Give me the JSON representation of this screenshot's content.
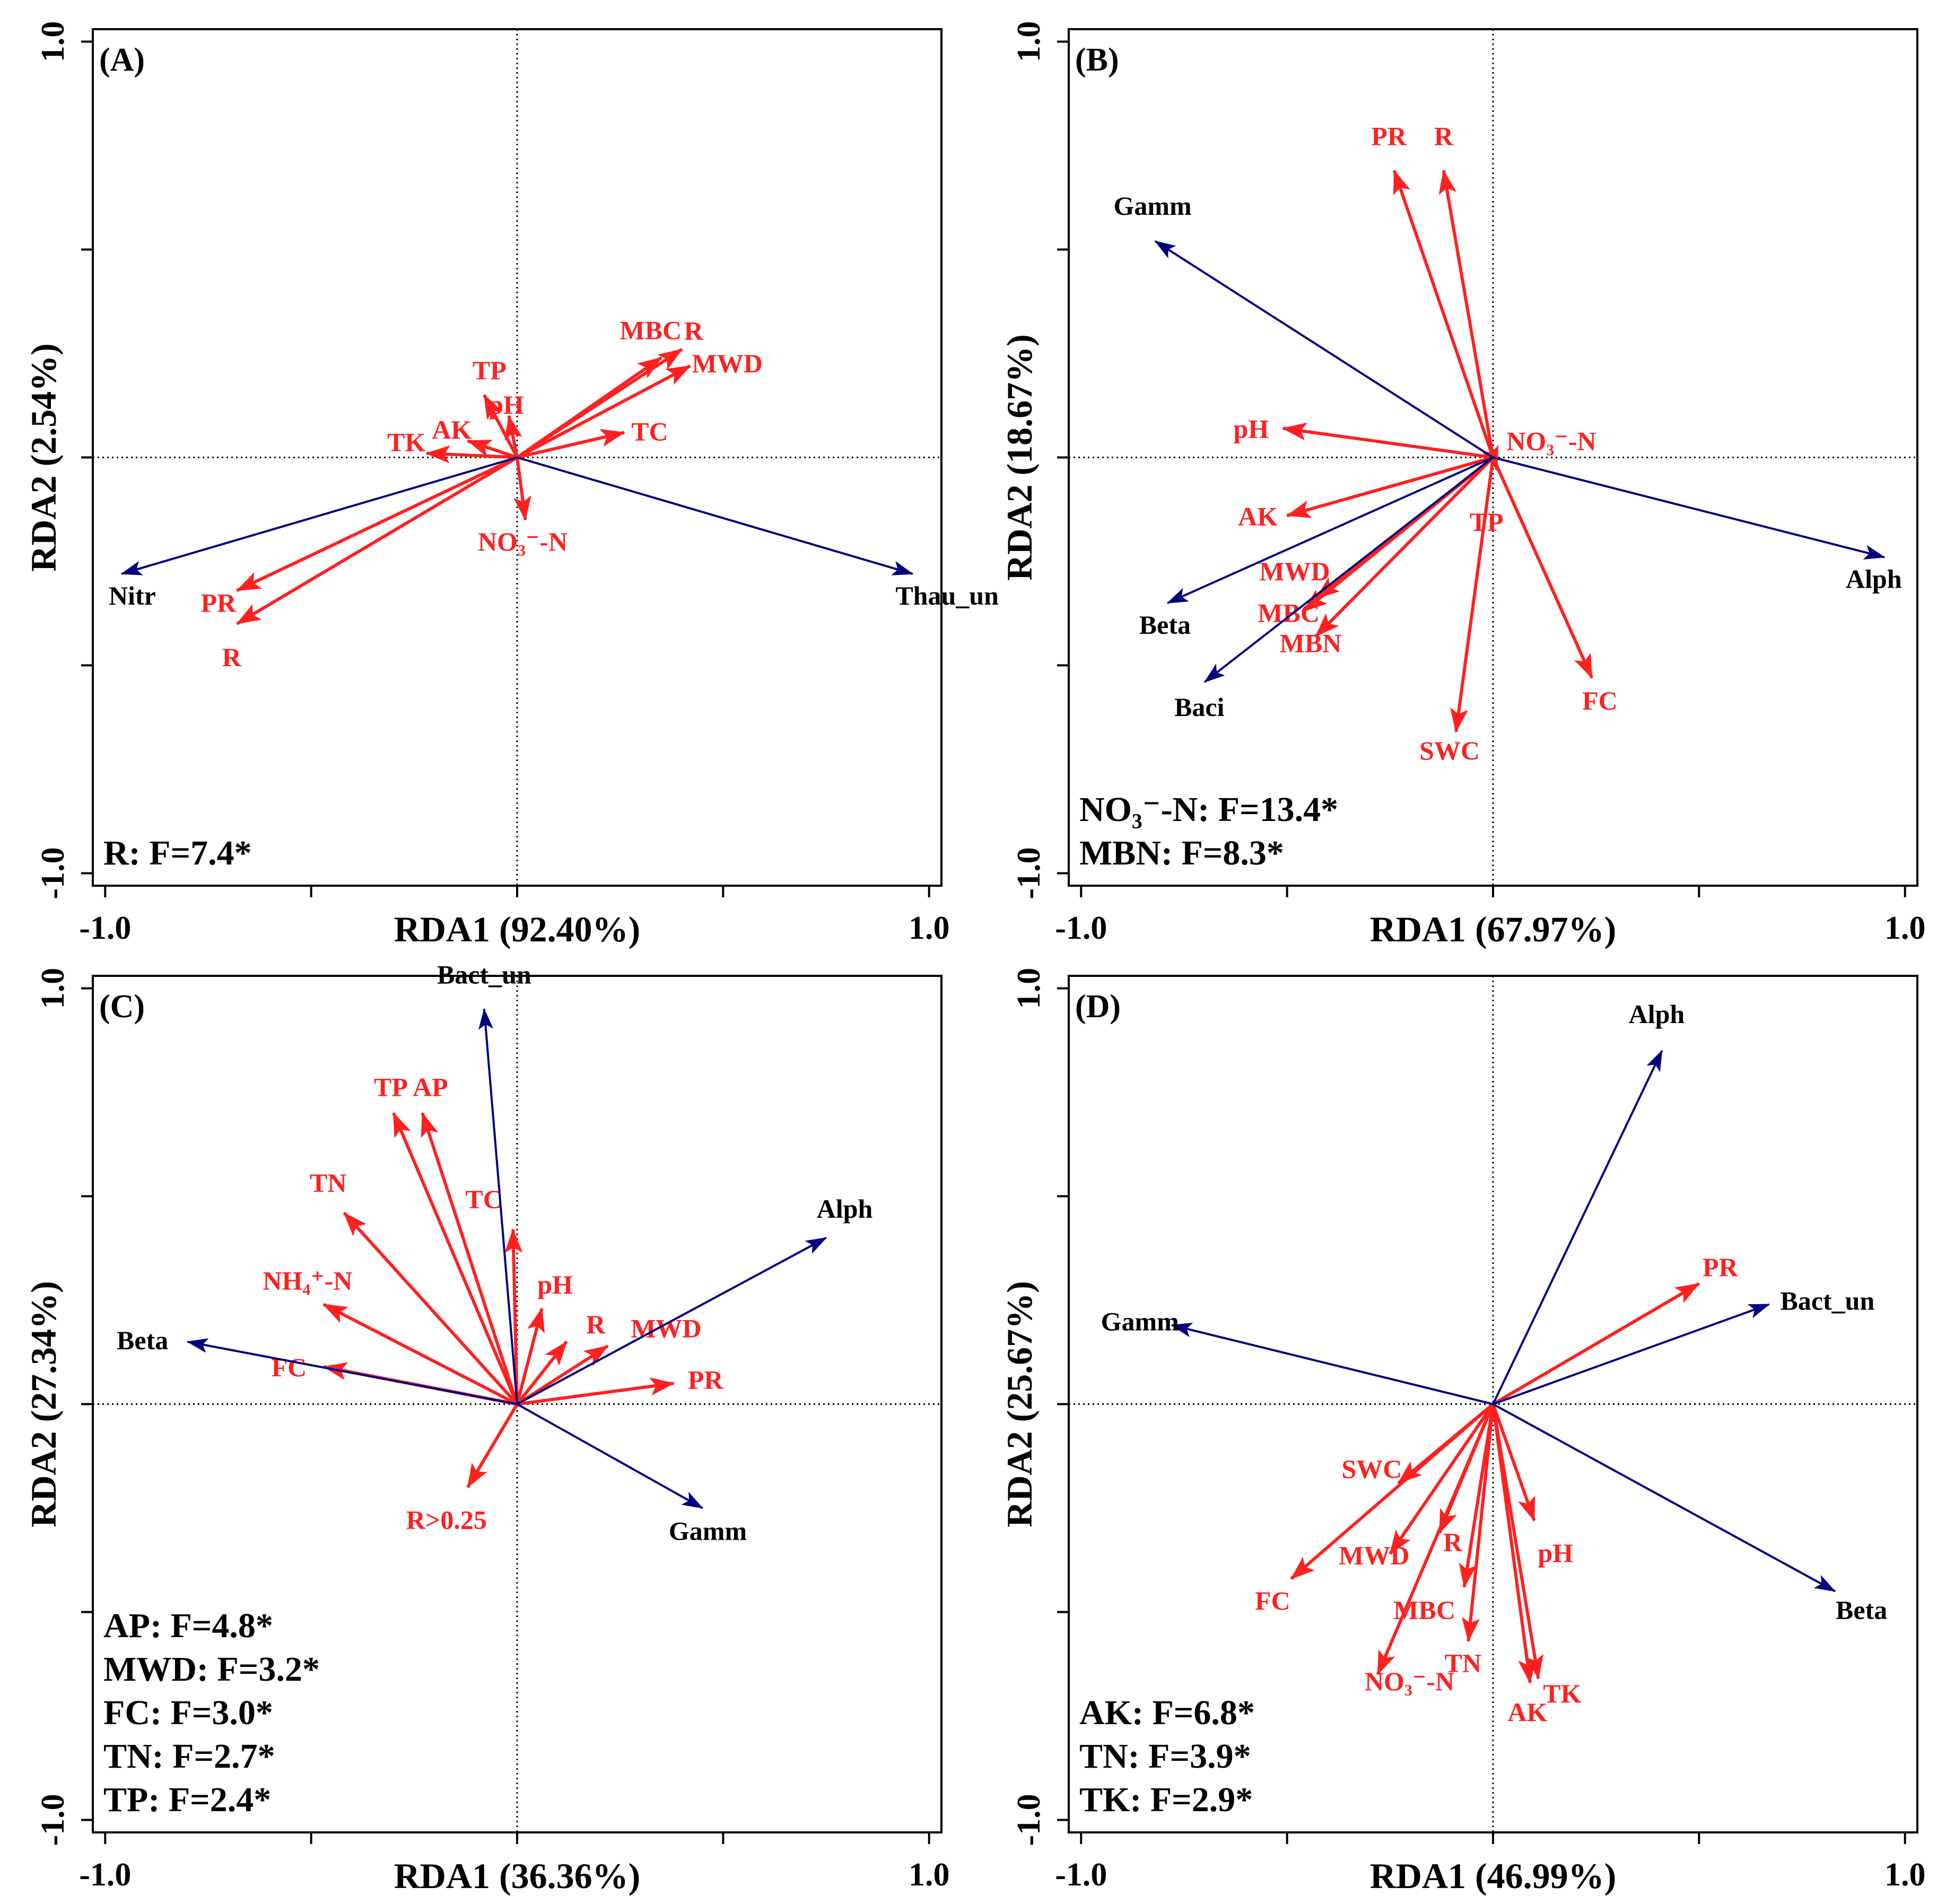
{
  "colors": {
    "env": "#ff2020",
    "taxa": "#000080",
    "frame": "#000000",
    "text": "#000000"
  },
  "chart_data": [
    {
      "type": "scatter",
      "panel": "(A)",
      "xlabel": "RDA1 (92.40%)",
      "ylabel": "RDA2 (2.54%)",
      "xlim": [
        -1.0,
        1.0
      ],
      "ylim": [
        -1.0,
        1.0
      ],
      "xtick_labels": [
        "-1.0",
        "1.0"
      ],
      "ytick_labels": [
        "-1.0",
        "1.0"
      ],
      "env_vectors": [
        {
          "name": "MBC",
          "x": 0.35,
          "y": 0.24
        },
        {
          "name": "R",
          "x": 0.4,
          "y": 0.26
        },
        {
          "name": "MWD",
          "x": 0.42,
          "y": 0.22
        },
        {
          "name": "TC",
          "x": 0.26,
          "y": 0.06
        },
        {
          "name": "pH",
          "x": -0.02,
          "y": 0.1
        },
        {
          "name": "TP",
          "x": -0.08,
          "y": 0.15
        },
        {
          "name": "AK",
          "x": -0.12,
          "y": 0.04
        },
        {
          "name": "TK",
          "x": -0.22,
          "y": 0.01
        },
        {
          "name": "NO₃⁻-N",
          "x": 0.02,
          "y": -0.15
        },
        {
          "name": "PR",
          "x": -0.68,
          "y": -0.32
        },
        {
          "name": "R",
          "x": -0.68,
          "y": -0.4
        }
      ],
      "taxa_vectors": [
        {
          "name": "Nitr",
          "x": -0.96,
          "y": -0.28
        },
        {
          "name": "Thau_un",
          "x": 0.96,
          "y": -0.28
        }
      ],
      "stats": [
        "R: F=7.4*"
      ]
    },
    {
      "type": "scatter",
      "panel": "(B)",
      "xlabel": "RDA1 (67.97%)",
      "ylabel": "RDA2 (18.67%)",
      "xlim": [
        -1.0,
        1.0
      ],
      "ylim": [
        -1.0,
        1.0
      ],
      "xtick_labels": [
        "-1.0",
        "1.0"
      ],
      "ytick_labels": [
        "-1.0",
        "1.0"
      ],
      "env_vectors": [
        {
          "name": "PR",
          "x": -0.24,
          "y": 0.69
        },
        {
          "name": "R",
          "x": -0.12,
          "y": 0.69
        },
        {
          "name": "pH",
          "x": -0.51,
          "y": 0.07
        },
        {
          "name": "NO₃⁻-N",
          "x": 0.0,
          "y": 0.0
        },
        {
          "name": "TP",
          "x": 0.01,
          "y": -0.03
        },
        {
          "name": "AK",
          "x": -0.5,
          "y": -0.14
        },
        {
          "name": "MWD",
          "x": -0.43,
          "y": -0.34
        },
        {
          "name": "MBC",
          "x": -0.46,
          "y": -0.37
        },
        {
          "name": "MBN",
          "x": -0.43,
          "y": -0.43
        },
        {
          "name": "SWC",
          "x": -0.09,
          "y": -0.66
        },
        {
          "name": "FC",
          "x": 0.24,
          "y": -0.53
        }
      ],
      "taxa_vectors": [
        {
          "name": "Gamm",
          "x": -0.82,
          "y": 0.52
        },
        {
          "name": "Beta",
          "x": -0.79,
          "y": -0.35
        },
        {
          "name": "Baci",
          "x": -0.7,
          "y": -0.54
        },
        {
          "name": "Alph",
          "x": 0.95,
          "y": -0.24
        }
      ],
      "stats": [
        "NO₃⁻-N: F=13.4*",
        "MBN: F=8.3*"
      ]
    },
    {
      "type": "scatter",
      "panel": "(C)",
      "xlabel": "RDA1 (36.36%)",
      "ylabel": "RDA2 (27.34%)",
      "xlim": [
        -1.0,
        1.0
      ],
      "ylim": [
        -1.0,
        1.0
      ],
      "xtick_labels": [
        "-1.0",
        "1.0"
      ],
      "ytick_labels": [
        "-1.0",
        "1.0"
      ],
      "env_vectors": [
        {
          "name": "TP",
          "x": -0.3,
          "y": 0.7
        },
        {
          "name": "AP",
          "x": -0.23,
          "y": 0.7
        },
        {
          "name": "TN",
          "x": -0.42,
          "y": 0.46
        },
        {
          "name": "TC",
          "x": -0.01,
          "y": 0.42
        },
        {
          "name": "NH₄⁺-N",
          "x": -0.47,
          "y": 0.24
        },
        {
          "name": "pH",
          "x": 0.06,
          "y": 0.23
        },
        {
          "name": "R",
          "x": 0.12,
          "y": 0.15
        },
        {
          "name": "MWD",
          "x": 0.22,
          "y": 0.14
        },
        {
          "name": "FC",
          "x": -0.47,
          "y": 0.09
        },
        {
          "name": "PR",
          "x": 0.38,
          "y": 0.05
        },
        {
          "name": "R>0.25",
          "x": -0.12,
          "y": -0.2
        }
      ],
      "taxa_vectors": [
        {
          "name": "Bact_un",
          "x": -0.08,
          "y": 0.95
        },
        {
          "name": "Alph",
          "x": 0.75,
          "y": 0.4
        },
        {
          "name": "Beta",
          "x": -0.8,
          "y": 0.15
        },
        {
          "name": "Gamm",
          "x": 0.45,
          "y": -0.25
        }
      ],
      "stats": [
        "AP: F=4.8*",
        "MWD: F=3.2*",
        "FC: F=3.0*",
        "TN: F=2.7*",
        "TP: F=2.4*"
      ]
    },
    {
      "type": "scatter",
      "panel": "(D)",
      "xlabel": "RDA1 (46.99%)",
      "ylabel": "RDA2 (25.67%)",
      "xlim": [
        -1.0,
        1.0
      ],
      "ylim": [
        -1.0,
        1.0
      ],
      "xtick_labels": [
        "-1.0",
        "1.0"
      ],
      "ytick_labels": [
        "-1.0",
        "1.0"
      ],
      "env_vectors": [
        {
          "name": "PR",
          "x": 0.5,
          "y": 0.29
        },
        {
          "name": "SWC",
          "x": -0.23,
          "y": -0.19
        },
        {
          "name": "FC",
          "x": -0.49,
          "y": -0.42
        },
        {
          "name": "MWD",
          "x": -0.25,
          "y": -0.36
        },
        {
          "name": "R",
          "x": -0.13,
          "y": -0.31
        },
        {
          "name": "MBC",
          "x": -0.07,
          "y": -0.44
        },
        {
          "name": "NO₃⁻-N",
          "x": -0.28,
          "y": -0.65
        },
        {
          "name": "TN",
          "x": -0.06,
          "y": -0.57
        },
        {
          "name": "pH",
          "x": 0.1,
          "y": -0.28
        },
        {
          "name": "AK",
          "x": 0.09,
          "y": -0.67
        },
        {
          "name": "TK",
          "x": 0.11,
          "y": -0.66
        }
      ],
      "taxa_vectors": [
        {
          "name": "Alph",
          "x": 0.41,
          "y": 0.85
        },
        {
          "name": "Bact_un",
          "x": 0.67,
          "y": 0.24
        },
        {
          "name": "Gamm",
          "x": -0.78,
          "y": 0.19
        },
        {
          "name": "Beta",
          "x": 0.83,
          "y": -0.45
        }
      ],
      "stats": [
        "AK: F=6.8*",
        "TN: F=3.9*",
        "TK: F=2.9*"
      ]
    }
  ]
}
